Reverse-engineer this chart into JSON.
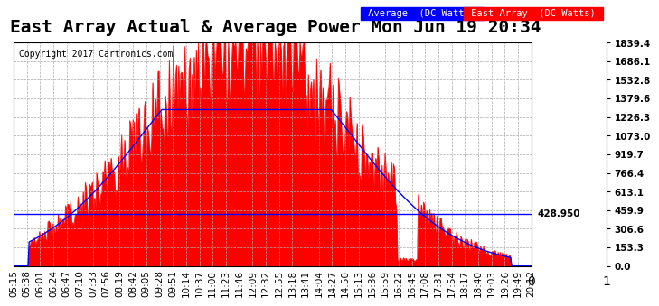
{
  "title": "East Array Actual & Average Power Mon Jun 19 20:34",
  "copyright": "Copyright 2017 Cartronics.com",
  "legend_labels": [
    "Average  (DC Watts)",
    "East Array  (DC Watts)"
  ],
  "legend_colors": [
    "blue",
    "red"
  ],
  "y_ticks": [
    0.0,
    153.3,
    306.6,
    459.9,
    613.1,
    766.4,
    919.7,
    1073.0,
    1226.3,
    1379.6,
    1532.8,
    1686.1,
    1839.4
  ],
  "y_max": 1839.4,
  "y_min": 0.0,
  "avg_line_y": 428.95,
  "avg_label": "428.950",
  "background_color": "#ffffff",
  "plot_bg_color": "#ffffff",
  "grid_color": "#aaaaaa",
  "x_labels": [
    "05:15",
    "05:38",
    "06:01",
    "06:24",
    "06:47",
    "07:10",
    "07:33",
    "07:56",
    "08:19",
    "08:42",
    "09:05",
    "09:28",
    "09:51",
    "10:14",
    "10:37",
    "11:00",
    "11:23",
    "11:46",
    "12:09",
    "12:32",
    "12:55",
    "13:18",
    "13:41",
    "14:04",
    "14:27",
    "14:50",
    "15:13",
    "15:36",
    "15:59",
    "16:22",
    "16:45",
    "17:08",
    "17:31",
    "17:54",
    "18:17",
    "18:40",
    "19:03",
    "19:26",
    "19:49",
    "20:12"
  ],
  "title_fontsize": 14,
  "tick_fontsize": 7.5,
  "copyright_fontsize": 7
}
